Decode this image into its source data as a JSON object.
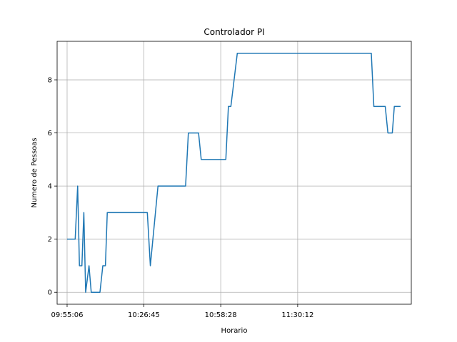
{
  "chart_data": {
    "type": "line",
    "title": "Controlador PI",
    "xlabel": "Horario",
    "ylabel": "Numero de Pessoas",
    "x_tick_labels": [
      "09:55:06",
      "10:26:45",
      "10:58:28",
      "11:30:12"
    ],
    "y_tick_labels": [
      "0",
      "2",
      "4",
      "6",
      "8"
    ],
    "ylim": [
      -0.45,
      9.45
    ],
    "xlim": [
      "09:50:59",
      "12:17:04"
    ],
    "grid": true,
    "legend": "none",
    "series": [
      {
        "color": "#1f77b4",
        "points": [
          [
            "09:55:06",
            2
          ],
          [
            "09:58:26",
            2
          ],
          [
            "09:59:27",
            4
          ],
          [
            "10:00:11",
            1
          ],
          [
            "10:01:12",
            1
          ],
          [
            "10:02:00",
            3
          ],
          [
            "10:02:45",
            0
          ],
          [
            "10:04:08",
            1
          ],
          [
            "10:05:03",
            0
          ],
          [
            "10:08:39",
            0
          ],
          [
            "10:09:50",
            1
          ],
          [
            "10:10:54",
            1
          ],
          [
            "10:11:40",
            3
          ],
          [
            "10:28:11",
            3
          ],
          [
            "10:29:26",
            1
          ],
          [
            "10:32:35",
            4
          ],
          [
            "10:43:58",
            4
          ],
          [
            "10:45:07",
            6
          ],
          [
            "10:49:19",
            6
          ],
          [
            "10:50:25",
            5
          ],
          [
            "11:00:34",
            5
          ],
          [
            "11:01:38",
            7
          ],
          [
            "11:02:39",
            7
          ],
          [
            "11:05:18",
            9
          ],
          [
            "12:00:34",
            9
          ],
          [
            "12:01:37",
            7
          ],
          [
            "12:06:19",
            7
          ],
          [
            "12:07:25",
            6
          ],
          [
            "12:09:14",
            6
          ],
          [
            "12:10:04",
            7
          ],
          [
            "12:12:38",
            7
          ]
        ]
      }
    ]
  }
}
